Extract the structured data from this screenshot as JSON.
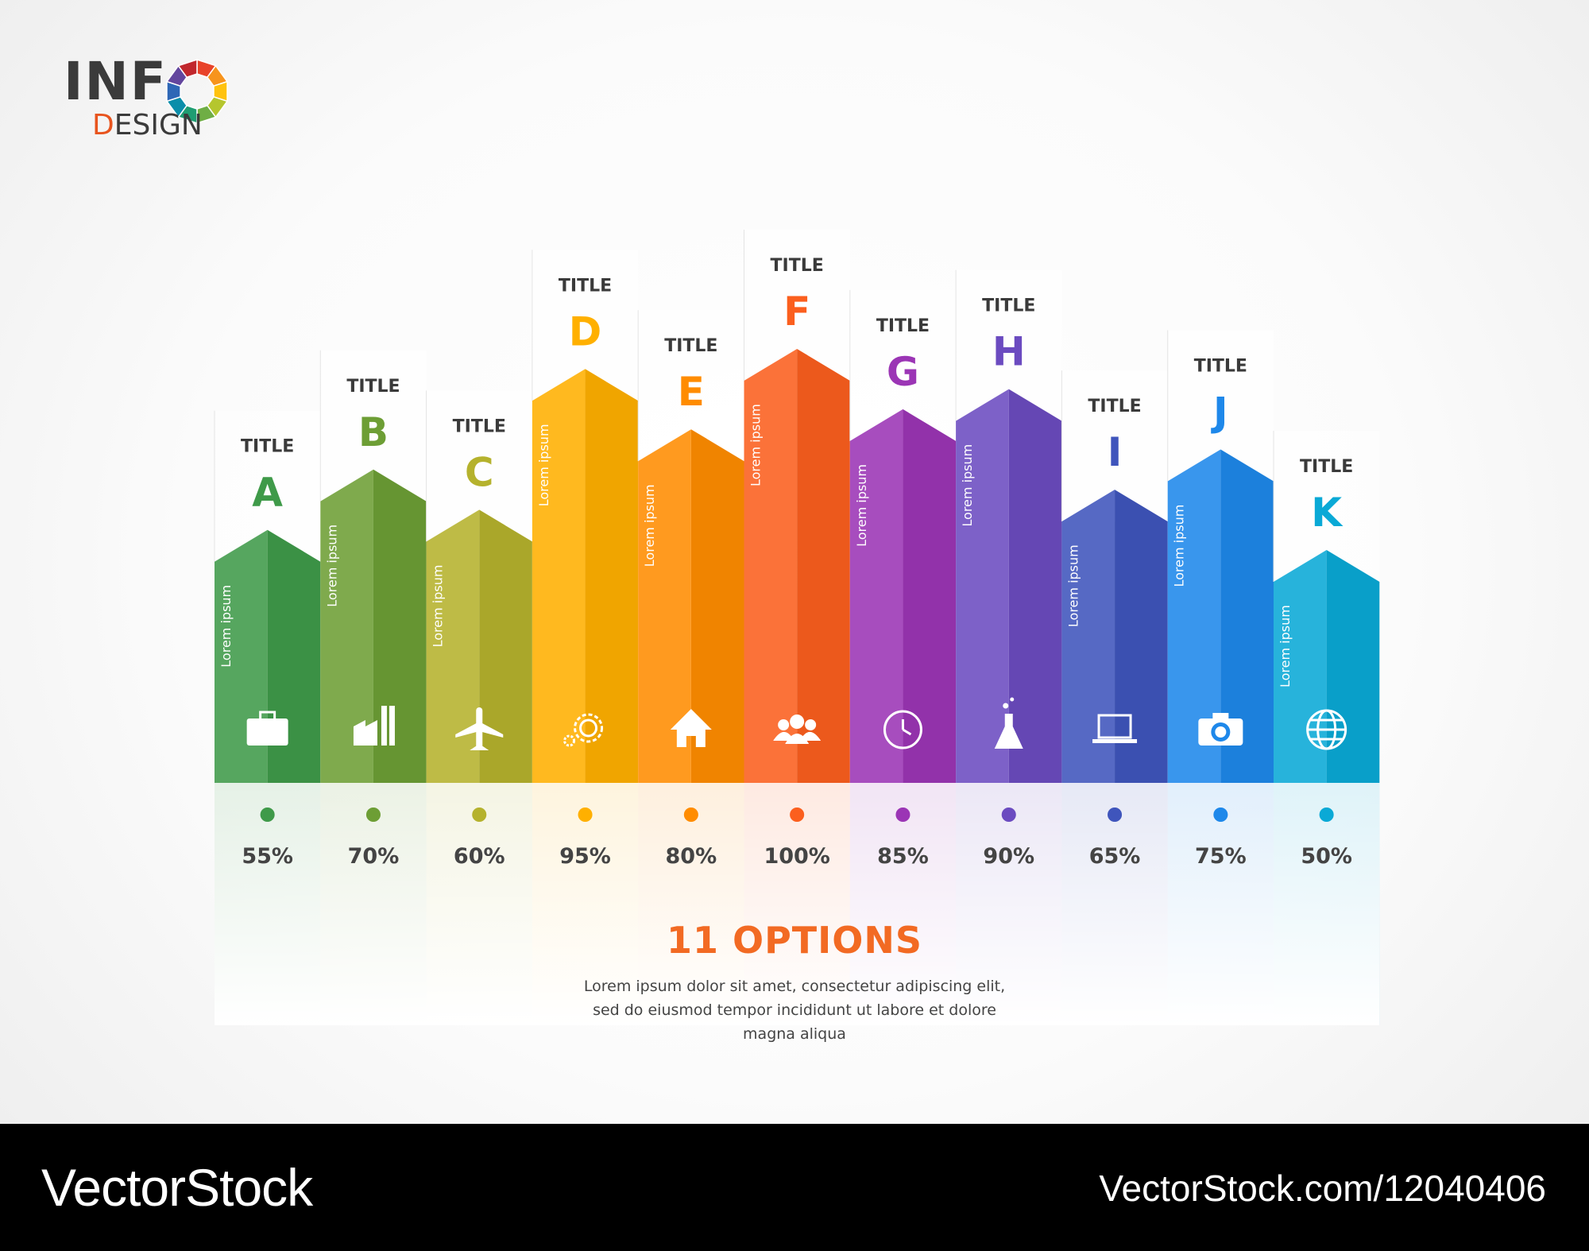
{
  "logo": {
    "line1": "INF",
    "line2_first": "D",
    "line2_rest": "ESIGN"
  },
  "chart_data": {
    "type": "bar",
    "categories": [
      "A",
      "B",
      "C",
      "D",
      "E",
      "F",
      "G",
      "H",
      "I",
      "J",
      "K"
    ],
    "values": [
      55,
      70,
      60,
      95,
      80,
      100,
      85,
      90,
      65,
      75,
      50
    ],
    "value_labels": [
      "55%",
      "70%",
      "60%",
      "95%",
      "80%",
      "100%",
      "85%",
      "90%",
      "65%",
      "75%",
      "50%"
    ],
    "bar_title": "TITLE",
    "bar_text": "Lorem ipsum",
    "icons": [
      "briefcase-icon",
      "factory-icon",
      "airplane-icon",
      "gears-icon",
      "house-icon",
      "people-icon",
      "clock-icon",
      "flask-icon",
      "laptop-icon",
      "camera-icon",
      "globe-icon"
    ],
    "colors": [
      "#3f9a49",
      "#6d9e35",
      "#b5b22d",
      "#ffb000",
      "#ff8c00",
      "#fb5f1e",
      "#9b35b5",
      "#6b4bc0",
      "#3f55bc",
      "#1e88ea",
      "#0aa9d6"
    ],
    "ylim": [
      0,
      100
    ]
  },
  "summary": {
    "title": "11 OPTIONS",
    "lines": [
      "Lorem ipsum dolor sit amet, consectetur adipiscing elit,",
      "sed do eiusmod tempor incididunt ut labore et dolore",
      "magna aliqua"
    ]
  },
  "footer": {
    "brand": "VectorStock",
    "url": "VectorStock.com/12040406"
  }
}
